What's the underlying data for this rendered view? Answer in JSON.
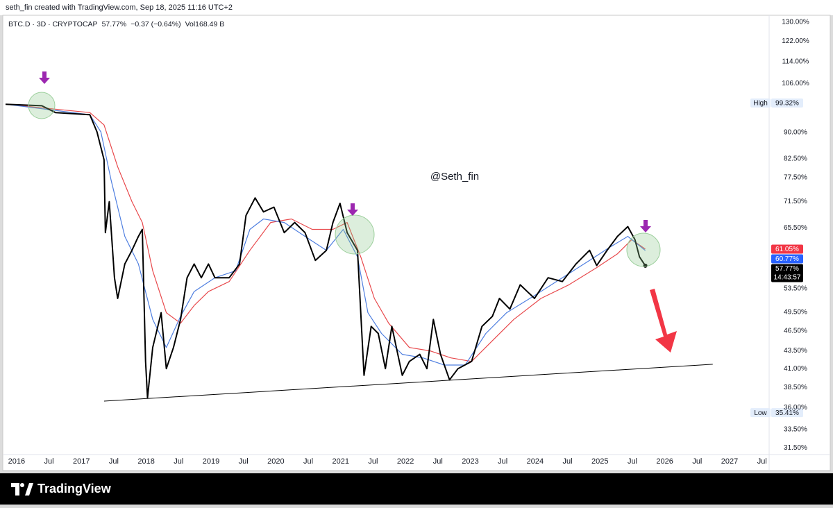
{
  "header": "seth_fin created with TradingView.com, Sep 18, 2025 11:16 UTC+2",
  "chart_data": {
    "type": "line",
    "symbol": "BTC.D · 3D · CRYPTOCAP",
    "last": "57.77%",
    "change": "−0.37 (−0.64%)",
    "volume": "Vol168.49 B",
    "watermark": "@Seth_fin",
    "log_scale": true,
    "grid": false,
    "xlim": [
      2015.83,
      2027.61
    ],
    "xticks": [
      2016,
      {
        "value": 2016.5,
        "label": "Jul"
      },
      2017,
      {
        "value": 2017.5,
        "label": "Jul"
      },
      2018,
      {
        "value": 2018.5,
        "label": "Jul"
      },
      2019,
      {
        "value": 2019.5,
        "label": "Jul"
      },
      2020,
      {
        "value": 2020.5,
        "label": "Jul"
      },
      2021,
      {
        "value": 2021.5,
        "label": "Jul"
      },
      2022,
      {
        "value": 2022.5,
        "label": "Jul"
      },
      2023,
      {
        "value": 2023.5,
        "label": "Jul"
      },
      2024,
      {
        "value": 2024.5,
        "label": "Jul"
      },
      2025,
      {
        "value": 2025.5,
        "label": "Jul"
      },
      2026,
      {
        "value": 2026.5,
        "label": "Jul"
      },
      2027,
      {
        "value": 2027.5,
        "label": "Jul"
      }
    ],
    "ylim": [
      30.8,
      133
    ],
    "yticks": [
      {
        "value": 31.5,
        "label": "31.50%"
      },
      {
        "value": 33.5,
        "label": "33.50%"
      },
      {
        "value": 36,
        "label": "36.00%"
      },
      {
        "value": 38.5,
        "label": "38.50%"
      },
      {
        "value": 41,
        "label": "41.00%"
      },
      {
        "value": 43.5,
        "label": "43.50%"
      },
      {
        "value": 46.5,
        "label": "46.50%"
      },
      {
        "value": 49.5,
        "label": "49.50%"
      },
      {
        "value": 53.5,
        "label": "53.50%"
      },
      {
        "value": 65.5,
        "label": "65.50%"
      },
      {
        "value": 71.5,
        "label": "71.50%"
      },
      {
        "value": 77.5,
        "label": "77.50%"
      },
      {
        "value": 82.5,
        "label": "82.50%"
      },
      {
        "value": 90,
        "label": "90.00%"
      },
      {
        "value": 106,
        "label": "106.00%"
      },
      {
        "value": 114,
        "label": "114.00%"
      },
      {
        "value": 122,
        "label": "122.00%"
      },
      {
        "value": 130,
        "label": "130.00%"
      }
    ],
    "series": [
      {
        "color": "#000000",
        "width": 2,
        "x": [
          2015.83,
          2016.39,
          2016.6,
          2017.13,
          2017.24,
          2017.35,
          2017.37,
          2017.43,
          2017.51,
          2017.56,
          2017.67,
          2017.78,
          2017.88,
          2017.94,
          2017.99,
          2018.02,
          2018.1,
          2018.23,
          2018.31,
          2018.42,
          2018.53,
          2018.63,
          2018.74,
          2018.85,
          2018.96,
          2019.06,
          2019.28,
          2019.44,
          2019.54,
          2019.68,
          2019.81,
          2019.97,
          2020.13,
          2020.29,
          2020.45,
          2020.61,
          2020.78,
          2020.88,
          2020.99,
          2021.1,
          2021.26,
          2021.31,
          2021.36,
          2021.47,
          2021.58,
          2021.69,
          2021.79,
          2021.95,
          2022.06,
          2022.22,
          2022.33,
          2022.43,
          2022.54,
          2022.68,
          2022.81,
          2023.02,
          2023.18,
          2023.34,
          2023.45,
          2023.61,
          2023.77,
          2023.99,
          2024.2,
          2024.42,
          2024.63,
          2024.84,
          2024.95,
          2025.11,
          2025.27,
          2025.43,
          2025.54,
          2025.61,
          2025.7
        ],
        "values": [
          98.9,
          98.4,
          96.2,
          95.5,
          90.2,
          82.2,
          64.5,
          71.5,
          55.5,
          51.8,
          58.1,
          60.8,
          63.7,
          65.2,
          42.0,
          37.2,
          44.0,
          49.4,
          41.0,
          44.0,
          48.3,
          55.5,
          58.1,
          55.5,
          58.1,
          55.5,
          55.5,
          58.1,
          68.3,
          72.4,
          69.1,
          70.2,
          64.5,
          66.7,
          64.5,
          58.8,
          60.8,
          66.7,
          71.1,
          64.5,
          60.8,
          49.4,
          40.1,
          47.2,
          46.1,
          41.0,
          47.2,
          40.1,
          42.0,
          43.0,
          41.0,
          48.3,
          43.0,
          39.5,
          41.0,
          42.0,
          47.2,
          48.8,
          51.8,
          50.0,
          54.2,
          51.8,
          55.5,
          54.8,
          58.1,
          60.8,
          57.8,
          60.8,
          63.7,
          65.8,
          63.0,
          59.5,
          57.77
        ]
      },
      {
        "color": "#4f7fe0",
        "width": 1.2,
        "x": [
          2015.83,
          2017.13,
          2017.3,
          2017.46,
          2017.67,
          2017.88,
          2018.1,
          2018.31,
          2018.53,
          2018.74,
          2019.06,
          2019.38,
          2019.6,
          2019.81,
          2020.13,
          2020.45,
          2020.78,
          2021.04,
          2021.26,
          2021.42,
          2021.63,
          2021.95,
          2022.27,
          2022.6,
          2022.92,
          2023.24,
          2023.56,
          2023.99,
          2024.42,
          2024.84,
          2025.16,
          2025.43,
          2025.7
        ],
        "values": [
          98.9,
          95.5,
          90.2,
          76.7,
          63.7,
          58.1,
          48.3,
          44.0,
          48.8,
          53.0,
          55.5,
          56.8,
          65.2,
          67.5,
          66.7,
          63.7,
          60.8,
          65.2,
          59.5,
          49.4,
          46.1,
          43.0,
          42.5,
          41.5,
          41.5,
          46.1,
          49.4,
          52.3,
          55.5,
          58.8,
          61.5,
          63.7,
          60.77
        ]
      },
      {
        "color": "#e8494c",
        "width": 1.2,
        "x": [
          2015.83,
          2017.13,
          2017.35,
          2017.56,
          2017.78,
          2017.94,
          2018.1,
          2018.31,
          2018.53,
          2018.74,
          2018.96,
          2019.28,
          2019.6,
          2019.92,
          2020.24,
          2020.56,
          2020.88,
          2021.1,
          2021.31,
          2021.52,
          2021.74,
          2022.06,
          2022.38,
          2022.7,
          2023.02,
          2023.34,
          2023.67,
          2024.09,
          2024.52,
          2024.95,
          2025.27,
          2025.49,
          2025.7
        ],
        "values": [
          98.9,
          96.2,
          92.3,
          80.3,
          71.5,
          66.7,
          56.8,
          49.4,
          47.7,
          50.6,
          53.0,
          54.8,
          60.8,
          66.7,
          67.5,
          65.2,
          65.2,
          66.7,
          59.5,
          51.8,
          47.7,
          44.0,
          43.5,
          42.5,
          42.0,
          45.0,
          48.3,
          51.8,
          54.2,
          57.4,
          60.1,
          63.0,
          61.05
        ]
      }
    ],
    "trendline": {
      "color": "#000000",
      "x": [
        2017.35,
        2026.74
      ],
      "values": [
        36.8,
        41.6
      ]
    },
    "price_labels": [
      {
        "name": "High",
        "value": 99.32,
        "value_label": "99.32%",
        "color": "#e3edfb"
      },
      {
        "value": 61.05,
        "value_label": "61.05%",
        "color": "#f23645"
      },
      {
        "value": 60.77,
        "value_label": "60.77%",
        "color": "#2962ff"
      },
      {
        "value": 57.77,
        "value_label": "57.77%",
        "color": "#000000",
        "countdown": "14:43:57"
      },
      {
        "name": "Low",
        "value": 35.41,
        "value_label": "35.41%",
        "color": "#e3edfb"
      }
    ]
  },
  "footer": {
    "brand": "TradingView"
  }
}
